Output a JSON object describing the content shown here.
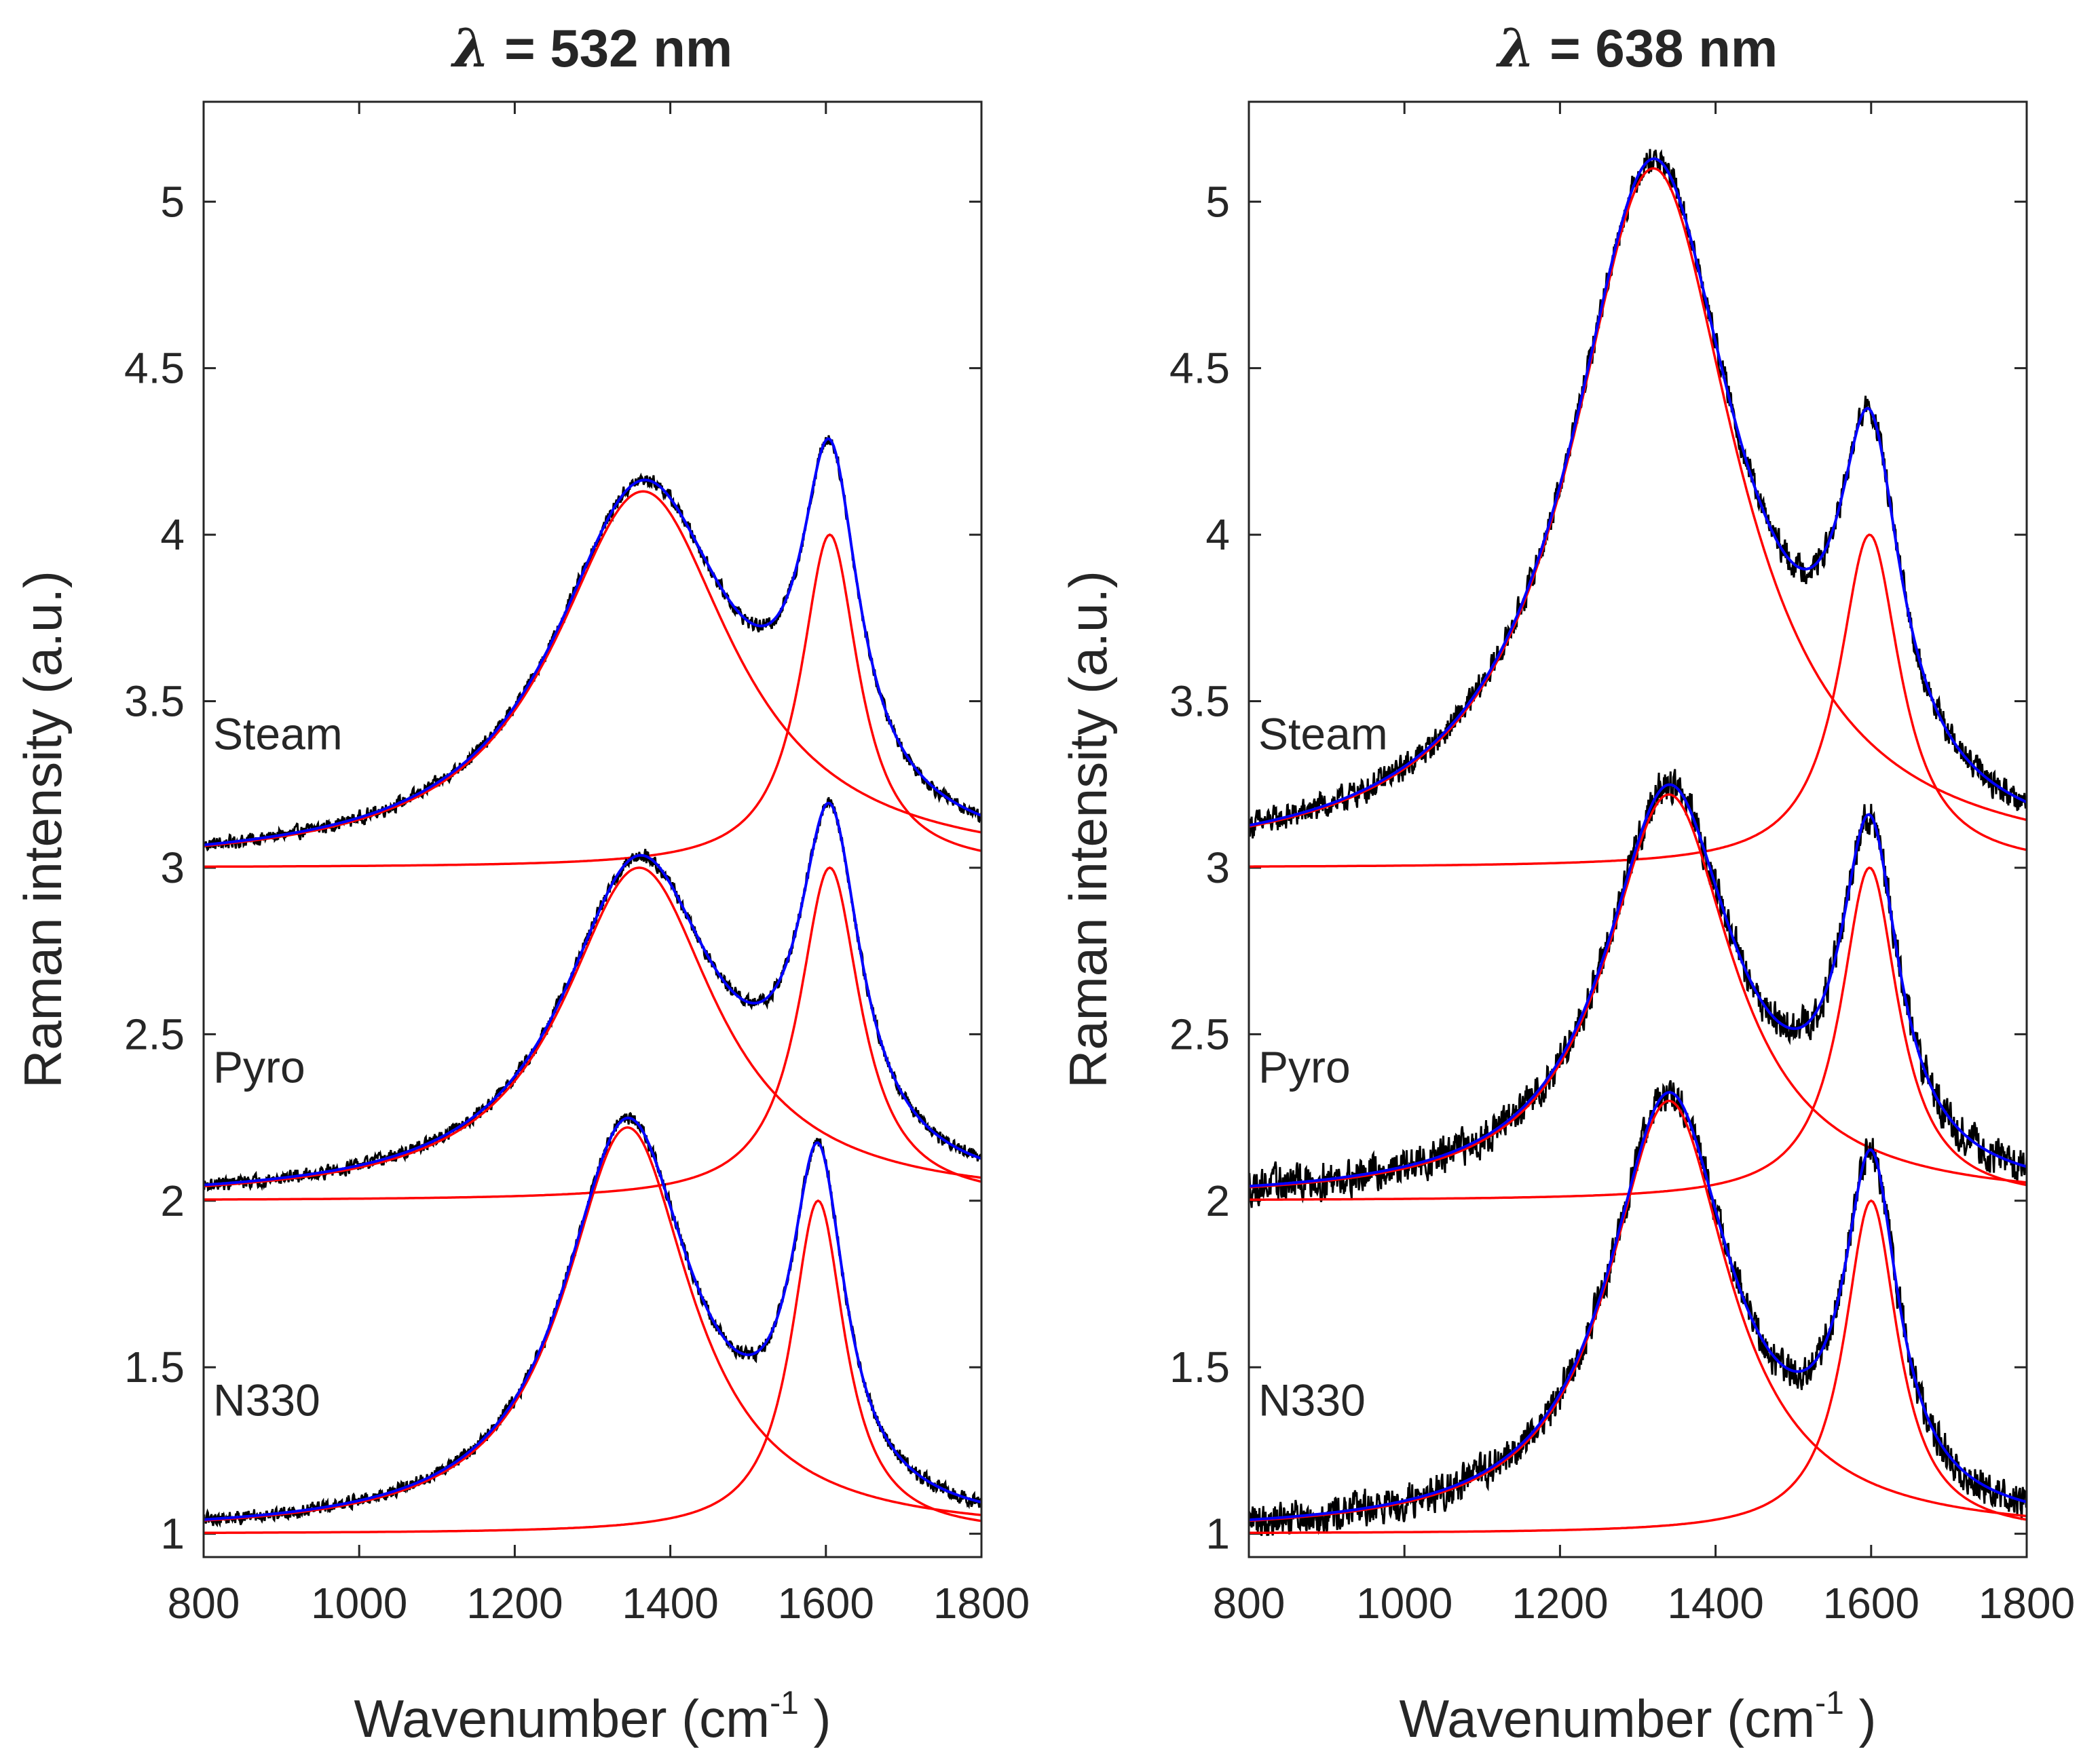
{
  "chart_data": [
    {
      "type": "line",
      "title_symbol": "λ",
      "title_rest": " = 532 nm",
      "xlabel_main": "Wavenumber (cm",
      "xlabel_sup": "-1",
      "xlabel_end": " )",
      "ylabel": "Raman intensity (a.u.)",
      "xlim": [
        800,
        1800
      ],
      "ylim": [
        0.93,
        5.3
      ],
      "xticks": [
        "800",
        "1000",
        "1200",
        "1400",
        "1600",
        "1800"
      ],
      "yticks": [
        "1",
        "1.5",
        "2",
        "2.5",
        "3",
        "3.5",
        "4",
        "4.5",
        "5"
      ],
      "series": [
        {
          "name": "Steam",
          "label_y": 3.4,
          "baseline": 3.0,
          "D": {
            "center": 1365,
            "amplitude": 1.13,
            "hwhm": 140
          },
          "G": {
            "center": 1605,
            "amplitude": 1.0,
            "hwhm": 45
          },
          "noise": 0.03
        },
        {
          "name": "Pyro",
          "label_y": 2.4,
          "baseline": 2.0,
          "D": {
            "center": 1360,
            "amplitude": 1.0,
            "hwhm": 120
          },
          "G": {
            "center": 1605,
            "amplitude": 1.0,
            "hwhm": 48
          },
          "noise": 0.03
        },
        {
          "name": "N330",
          "label_y": 1.4,
          "baseline": 1.0,
          "D": {
            "center": 1345,
            "amplitude": 1.22,
            "hwhm": 100
          },
          "G": {
            "center": 1590,
            "amplitude": 1.0,
            "hwhm": 42
          },
          "noise": 0.03
        }
      ]
    },
    {
      "type": "line",
      "title_symbol": "λ",
      "title_rest": " = 638 nm",
      "xlabel_main": "Wavenumber (cm",
      "xlabel_sup": "-1",
      "xlabel_end": " )",
      "ylabel": "Raman intensity (a.u.)",
      "xlim": [
        800,
        1800
      ],
      "ylim": [
        0.93,
        5.3
      ],
      "xticks": [
        "800",
        "1000",
        "1200",
        "1400",
        "1600",
        "1800"
      ],
      "yticks": [
        "1",
        "1.5",
        "2",
        "2.5",
        "3",
        "3.5",
        "4",
        "4.5",
        "5"
      ],
      "series": [
        {
          "name": "Steam",
          "label_y": 3.4,
          "baseline": 3.0,
          "D": {
            "center": 1320,
            "amplitude": 2.1,
            "hwhm": 130
          },
          "G": {
            "center": 1598,
            "amplitude": 1.0,
            "hwhm": 48
          },
          "noise": 0.06
        },
        {
          "name": "Pyro",
          "label_y": 2.4,
          "baseline": 2.0,
          "D": {
            "center": 1340,
            "amplitude": 1.22,
            "hwhm": 100
          },
          "G": {
            "center": 1598,
            "amplitude": 1.0,
            "hwhm": 45
          },
          "noise": 0.08
        },
        {
          "name": "N330",
          "label_y": 1.4,
          "baseline": 1.0,
          "D": {
            "center": 1340,
            "amplitude": 1.3,
            "hwhm": 95
          },
          "G": {
            "center": 1600,
            "amplitude": 1.0,
            "hwhm": 42
          },
          "noise": 0.08
        }
      ]
    }
  ],
  "colors": {
    "data": "#000000",
    "fit": "#0000ff",
    "component": "#ff0000",
    "axis": "#262626"
  }
}
